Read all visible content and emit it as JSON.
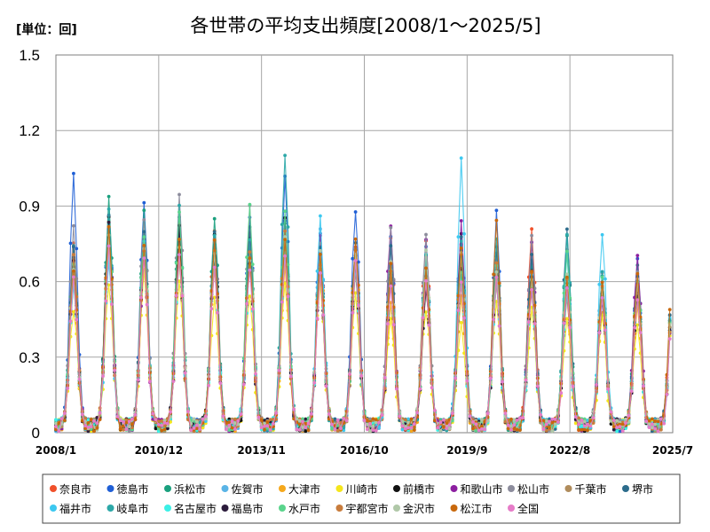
{
  "chart_data": {
    "type": "line",
    "title": "各世帯の平均支出頻度[2008/1～2025/5]",
    "unit_label": "[単位：回]",
    "ylim": [
      0,
      1.5
    ],
    "y_ticks": [
      "0",
      "0.3",
      "0.6",
      "0.9",
      "1.2",
      "1.5"
    ],
    "y_tick_values": [
      0,
      0.3,
      0.6,
      0.9,
      1.2,
      1.5
    ],
    "x_ticks": [
      "2008/1",
      "2010/12",
      "2013/11",
      "2016/10",
      "2019/9",
      "2022/8",
      "2025/7"
    ],
    "x_start": "2008/1",
    "x_end": "2025/7",
    "grid": true,
    "legend_position": "bottom",
    "seasonal_peak_month": 7,
    "series": [
      {
        "name": "奈良市",
        "color": "#f0502a",
        "peaks": [
          0.74,
          0.85,
          0.75,
          0.76,
          0.82,
          0.79,
          0.83,
          0.61,
          0.73,
          0.76,
          0.77,
          0.66,
          0.69,
          0.83,
          0.55,
          0.55,
          0.55,
          0.62
        ]
      },
      {
        "name": "徳島市",
        "color": "#1f5fd6",
        "peaks": [
          1.01,
          0.86,
          0.93,
          0.78,
          0.78,
          0.86,
          1.02,
          0.81,
          0.9,
          0.77,
          0.72,
          0.74,
          0.86,
          0.69,
          0.62,
          0.57,
          0.67,
          0.58
        ]
      },
      {
        "name": "浜松市",
        "color": "#1aa07e",
        "peaks": [
          0.72,
          0.92,
          0.86,
          0.86,
          0.87,
          0.72,
          0.84,
          0.68,
          0.72,
          0.62,
          0.66,
          0.68,
          0.72,
          0.66,
          0.76,
          0.63,
          0.66,
          0.58
        ]
      },
      {
        "name": "佐賀市",
        "color": "#5ab4e6",
        "peaks": [
          0.65,
          0.82,
          0.79,
          0.74,
          0.73,
          0.75,
          0.72,
          0.8,
          0.66,
          0.65,
          0.68,
          0.62,
          0.67,
          0.6,
          0.55,
          0.62,
          0.62,
          0.57
        ]
      },
      {
        "name": "大津市",
        "color": "#f5a81c",
        "peaks": [
          0.6,
          0.78,
          0.74,
          0.81,
          0.66,
          0.71,
          0.66,
          0.73,
          0.77,
          0.52,
          0.6,
          0.55,
          0.6,
          0.55,
          0.56,
          0.5,
          0.5,
          0.55
        ]
      },
      {
        "name": "川崎市",
        "color": "#f5e61c",
        "peaks": [
          0.5,
          0.6,
          0.65,
          0.6,
          0.55,
          0.55,
          0.6,
          0.6,
          0.56,
          0.45,
          0.5,
          0.45,
          0.5,
          0.48,
          0.45,
          0.45,
          0.45,
          0.5
        ]
      },
      {
        "name": "前橋市",
        "color": "#111111",
        "peaks": [
          0.7,
          0.86,
          0.75,
          0.72,
          0.77,
          0.76,
          0.83,
          0.66,
          0.7,
          0.62,
          0.58,
          0.79,
          0.62,
          0.62,
          0.58,
          0.52,
          0.56,
          0.55
        ]
      },
      {
        "name": "和歌山市",
        "color": "#8c1fa0",
        "peaks": [
          0.68,
          0.8,
          0.7,
          0.8,
          0.7,
          0.74,
          0.78,
          0.76,
          0.66,
          0.84,
          0.75,
          0.82,
          0.66,
          0.78,
          0.6,
          0.62,
          0.71,
          0.55
        ]
      },
      {
        "name": "松山市",
        "color": "#8c8c9c",
        "peaks": [
          0.82,
          0.8,
          0.87,
          0.96,
          0.79,
          0.9,
          0.82,
          0.75,
          0.75,
          0.8,
          0.77,
          0.72,
          0.71,
          0.79,
          0.72,
          0.66,
          0.63,
          0.6
        ]
      },
      {
        "name": "千葉市",
        "color": "#b08c5c",
        "peaks": [
          0.62,
          0.74,
          0.72,
          0.7,
          0.74,
          0.7,
          0.74,
          0.62,
          0.66,
          0.62,
          0.6,
          0.6,
          0.6,
          0.58,
          0.56,
          0.55,
          0.56,
          0.55
        ]
      },
      {
        "name": "堺市",
        "color": "#2c6c8c",
        "peaks": [
          0.72,
          0.86,
          0.82,
          0.8,
          0.78,
          0.8,
          0.83,
          0.74,
          0.76,
          0.72,
          0.7,
          0.76,
          0.72,
          0.7,
          0.82,
          0.6,
          0.62,
          0.6
        ]
      },
      {
        "name": "福井市",
        "color": "#3cc8f0",
        "peaks": [
          0.6,
          0.7,
          0.78,
          0.76,
          0.7,
          0.68,
          0.72,
          0.84,
          0.7,
          0.64,
          0.7,
          1.07,
          0.66,
          0.62,
          0.72,
          0.79,
          0.62,
          0.6
        ]
      },
      {
        "name": "岐阜市",
        "color": "#2ca8a8",
        "peaks": [
          0.66,
          0.9,
          0.76,
          0.9,
          0.76,
          0.75,
          1.09,
          0.7,
          0.72,
          0.64,
          0.7,
          0.76,
          0.76,
          0.62,
          0.77,
          0.62,
          0.58,
          0.57
        ]
      },
      {
        "name": "名古屋市",
        "color": "#3cf0e6",
        "peaks": [
          0.62,
          0.72,
          0.74,
          0.72,
          0.68,
          0.66,
          0.74,
          0.66,
          0.66,
          0.6,
          0.62,
          0.62,
          0.6,
          0.56,
          0.56,
          0.55,
          0.55,
          0.52
        ]
      },
      {
        "name": "福島市",
        "color": "#2c1c3c",
        "peaks": [
          0.66,
          0.82,
          0.72,
          0.8,
          0.7,
          0.68,
          0.78,
          0.64,
          0.68,
          0.6,
          0.6,
          0.66,
          0.6,
          0.58,
          0.58,
          0.55,
          0.55,
          0.52
        ]
      },
      {
        "name": "水戸市",
        "color": "#5ad48c",
        "peaks": [
          0.68,
          0.84,
          0.8,
          0.9,
          0.72,
          0.91,
          0.88,
          0.66,
          0.68,
          0.62,
          0.64,
          0.66,
          0.66,
          0.62,
          0.74,
          0.6,
          0.62,
          0.58
        ]
      },
      {
        "name": "宇都宮市",
        "color": "#c87c3c",
        "peaks": [
          0.7,
          0.8,
          0.74,
          0.76,
          0.72,
          0.72,
          0.8,
          0.68,
          0.72,
          0.62,
          0.62,
          0.72,
          0.66,
          0.62,
          0.6,
          0.56,
          0.58,
          0.55
        ]
      },
      {
        "name": "金沢市",
        "color": "#b0c8a8",
        "peaks": [
          0.64,
          0.76,
          0.74,
          0.74,
          0.72,
          0.7,
          0.76,
          0.7,
          0.7,
          0.68,
          0.72,
          0.7,
          0.66,
          0.62,
          0.62,
          0.58,
          0.6,
          0.55
        ]
      },
      {
        "name": "松江市",
        "color": "#c8680c",
        "peaks": [
          0.66,
          0.8,
          0.74,
          0.76,
          0.74,
          0.7,
          0.76,
          0.7,
          0.78,
          0.68,
          0.66,
          0.72,
          0.83,
          0.66,
          0.62,
          0.6,
          0.62,
          0.67
        ]
      },
      {
        "name": "全国",
        "color": "#e67cc8",
        "peaks": [
          0.6,
          0.72,
          0.7,
          0.7,
          0.66,
          0.66,
          0.72,
          0.64,
          0.66,
          0.6,
          0.6,
          0.62,
          0.6,
          0.58,
          0.56,
          0.54,
          0.55,
          0.52
        ]
      }
    ]
  }
}
